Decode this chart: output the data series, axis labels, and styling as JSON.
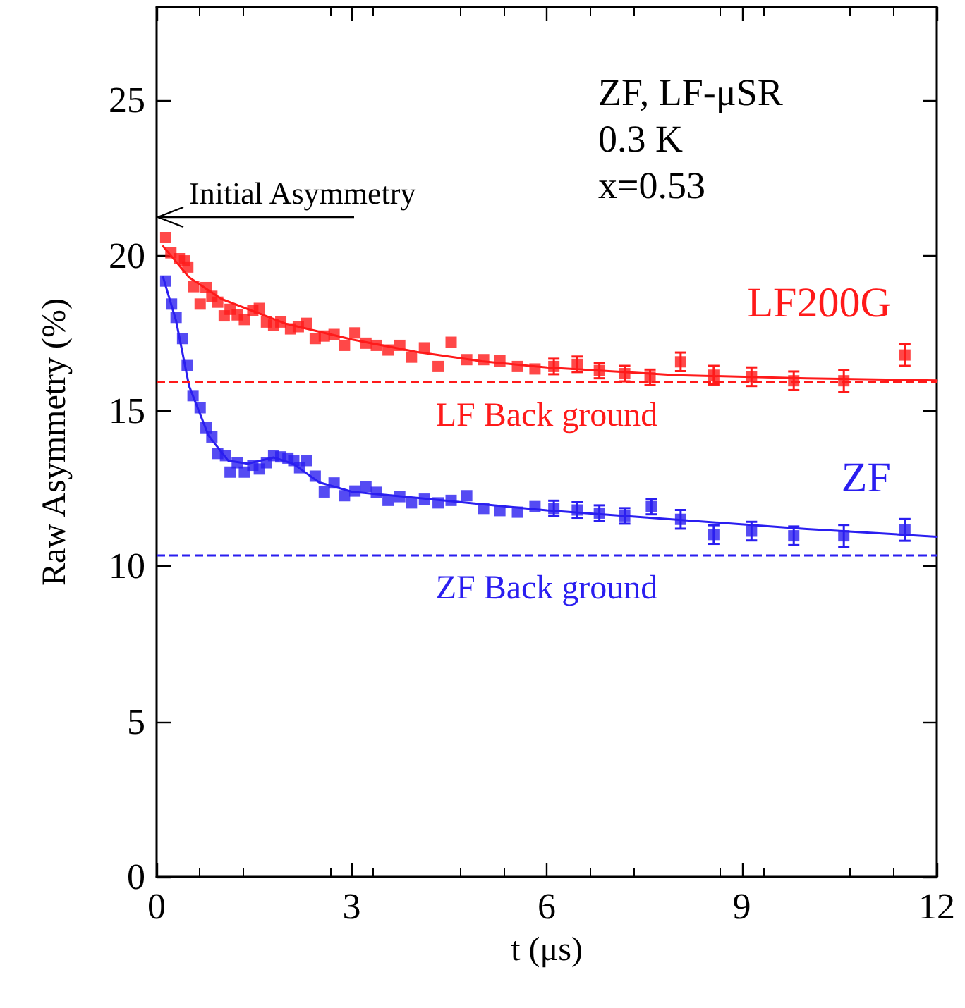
{
  "chart_data": {
    "type": "scatter",
    "xlabel": "t (μs)",
    "ylabel": "Raw Asymmetry (%)",
    "xlim": [
      0,
      12
    ],
    "xticks": [
      0,
      3,
      6,
      9,
      12
    ],
    "ylim": [
      0,
      28
    ],
    "yticks": [
      0,
      5,
      10,
      15,
      20,
      25
    ],
    "grid": false,
    "legend": false,
    "marker": "square",
    "series": [
      {
        "name": "LF200G",
        "color": "#ff1a1a",
        "x": [
          0.14,
          0.22,
          0.35,
          0.43,
          0.48,
          0.57,
          0.67,
          0.76,
          0.85,
          0.94,
          1.04,
          1.13,
          1.24,
          1.35,
          1.48,
          1.58,
          1.69,
          1.8,
          1.91,
          2.06,
          2.18,
          2.31,
          2.44,
          2.58,
          2.73,
          2.89,
          3.05,
          3.22,
          3.38,
          3.56,
          3.74,
          3.92,
          4.12,
          4.33,
          4.53,
          4.77,
          5.03,
          5.28,
          5.55,
          5.82,
          6.11,
          6.47,
          6.81,
          7.2,
          7.59,
          8.06,
          8.57,
          9.15,
          9.8,
          10.57,
          11.51
        ],
        "values": [
          20.58,
          20.09,
          19.9,
          19.83,
          19.63,
          19.0,
          18.44,
          18.97,
          18.69,
          18.5,
          18.06,
          18.27,
          18.09,
          17.94,
          18.24,
          18.3,
          17.86,
          17.76,
          17.86,
          17.64,
          17.71,
          17.82,
          17.33,
          17.41,
          17.46,
          17.11,
          17.51,
          17.18,
          17.11,
          16.96,
          17.11,
          16.73,
          17.03,
          16.43,
          17.21,
          16.65,
          16.65,
          16.61,
          16.43,
          16.35,
          16.43,
          16.5,
          16.3,
          16.2,
          16.08,
          16.58,
          16.15,
          16.1,
          15.97,
          15.97,
          16.8
        ],
        "errors": [
          null,
          null,
          null,
          null,
          null,
          null,
          null,
          null,
          null,
          null,
          null,
          null,
          null,
          null,
          null,
          null,
          null,
          null,
          null,
          null,
          null,
          null,
          null,
          null,
          null,
          null,
          null,
          null,
          null,
          null,
          null,
          null,
          null,
          null,
          null,
          null,
          null,
          null,
          null,
          null,
          0.25,
          0.25,
          0.25,
          0.25,
          0.25,
          0.3,
          0.3,
          0.3,
          0.3,
          0.35,
          0.35
        ]
      },
      {
        "name": "ZF",
        "color": "#2a1ef0",
        "x": [
          0.14,
          0.23,
          0.3,
          0.4,
          0.47,
          0.56,
          0.67,
          0.76,
          0.85,
          0.94,
          1.06,
          1.13,
          1.24,
          1.35,
          1.48,
          1.58,
          1.69,
          1.8,
          1.91,
          2.02,
          2.11,
          2.2,
          2.31,
          2.44,
          2.58,
          2.73,
          2.89,
          3.05,
          3.22,
          3.38,
          3.56,
          3.74,
          3.92,
          4.12,
          4.33,
          4.53,
          4.77,
          5.03,
          5.28,
          5.55,
          5.82,
          6.11,
          6.47,
          6.81,
          7.2,
          7.61,
          8.06,
          8.57,
          9.15,
          9.8,
          10.57,
          11.51
        ],
        "values": [
          19.18,
          18.44,
          18.01,
          17.33,
          16.46,
          15.49,
          15.1,
          14.46,
          14.16,
          13.63,
          13.56,
          13.03,
          13.33,
          13.03,
          13.25,
          13.13,
          13.33,
          13.56,
          13.52,
          13.48,
          13.4,
          13.17,
          13.4,
          12.9,
          12.39,
          12.68,
          12.27,
          12.42,
          12.57,
          12.38,
          12.12,
          12.24,
          12.04,
          12.16,
          12.04,
          12.12,
          12.27,
          11.86,
          11.79,
          11.74,
          11.92,
          11.86,
          11.81,
          11.71,
          11.62,
          11.92,
          11.51,
          11.02,
          11.13,
          10.98,
          10.98,
          11.17
        ],
        "errors": [
          null,
          null,
          null,
          null,
          null,
          null,
          null,
          null,
          null,
          null,
          null,
          null,
          null,
          null,
          null,
          null,
          null,
          null,
          null,
          null,
          null,
          null,
          null,
          null,
          null,
          null,
          null,
          null,
          null,
          null,
          null,
          null,
          null,
          null,
          null,
          null,
          null,
          null,
          null,
          null,
          null,
          0.25,
          0.25,
          0.25,
          0.25,
          0.25,
          0.3,
          0.3,
          0.3,
          0.3,
          0.35,
          0.35
        ]
      },
      {
        "type": "line",
        "color": "#ff1a1a",
        "marker": "none",
        "x": [
          0.1,
          0.5,
          1,
          2,
          3,
          4,
          5,
          6,
          8,
          10,
          12
        ],
        "values": [
          20.3,
          19.3,
          18.6,
          17.8,
          17.3,
          16.9,
          16.6,
          16.4,
          16.15,
          16.05,
          15.98
        ]
      },
      {
        "type": "line",
        "color": "#2a1ef0",
        "marker": "none",
        "x": [
          0.1,
          0.3,
          0.5,
          0.8,
          1.1,
          1.4,
          1.8,
          2.1,
          2.5,
          3,
          4,
          5,
          6,
          8,
          10,
          12
        ],
        "values": [
          19.3,
          17.9,
          15.8,
          14.2,
          13.4,
          13.3,
          13.5,
          13.3,
          12.7,
          12.4,
          12.2,
          12.0,
          11.8,
          11.5,
          11.2,
          10.95
        ]
      }
    ],
    "ref_lines": [
      {
        "axis": "y",
        "value": 15.94,
        "label": "LF Back ground",
        "color": "#ff1a1a",
        "line_style": "dashed"
      },
      {
        "axis": "y",
        "value": 10.38,
        "label": "ZF Back ground",
        "color": "#2a1ef0",
        "line_style": "dashed"
      }
    ],
    "annotations": [
      "Initial Asymmetry",
      "ZF, LF-μSR",
      "0.3 K",
      "x=0.53"
    ]
  }
}
